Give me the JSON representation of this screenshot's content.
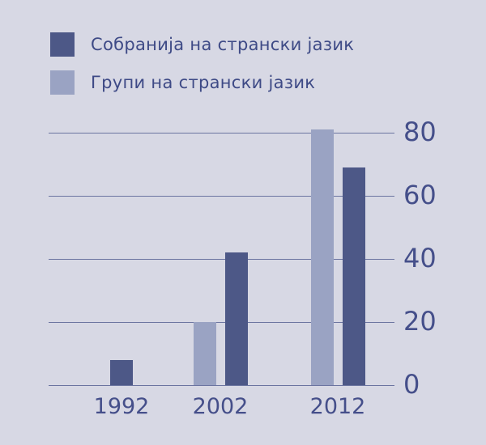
{
  "chart_data": {
    "type": "bar",
    "title": "",
    "xlabel": "",
    "ylabel": "",
    "categories": [
      "1992",
      "2002",
      "2012"
    ],
    "series": [
      {
        "name": "Собранија на странски јазик",
        "color": "#4d5887",
        "values": [
          8,
          42,
          69
        ]
      },
      {
        "name": "Групи на странски јазик",
        "color": "#9aa3c3",
        "values": [
          null,
          20,
          81
        ]
      }
    ],
    "ylim": [
      0,
      80
    ],
    "yticks": [
      0,
      20,
      40,
      60,
      80
    ],
    "grid": true,
    "legend_position": "top-left",
    "y_axis_side": "right"
  },
  "colors": {
    "background": "#d7d8e4",
    "gridline": "#6b74a0",
    "axis_text": "#454f8a",
    "legend_text": "#3e4a86"
  }
}
